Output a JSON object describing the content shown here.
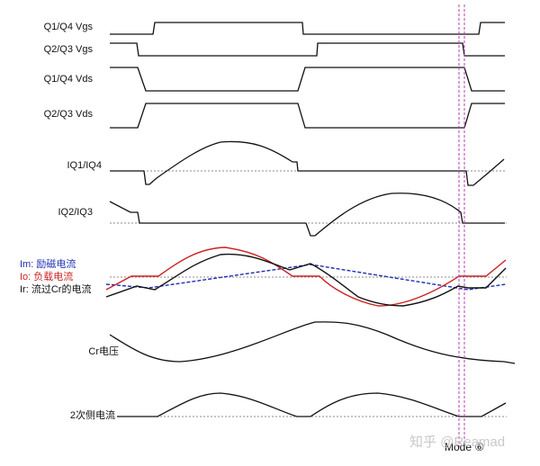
{
  "signals": [
    {
      "label": "Q1/Q4 Vgs"
    },
    {
      "label": "Q2/Q3 Vgs"
    },
    {
      "label": "Q1/Q4 Vds"
    },
    {
      "label": "Q2/Q3 Vds"
    },
    {
      "label": "IQ1/IQ4"
    },
    {
      "label": "IQ2/IQ3"
    },
    {
      "label": "Cr电压"
    },
    {
      "label": "2次侧电流"
    }
  ],
  "legend": [
    {
      "label": "Im: 励磁电流",
      "color": "#1f2fb0"
    },
    {
      "label": "Io: 负载电流",
      "color": "#cc2222"
    },
    {
      "label": "Ir: 流过Cr的电流",
      "color": "#111111"
    }
  ],
  "marker": {
    "label": "Mode ⑥",
    "color": "#b040b0"
  },
  "watermark": "知乎 @Reamad"
}
